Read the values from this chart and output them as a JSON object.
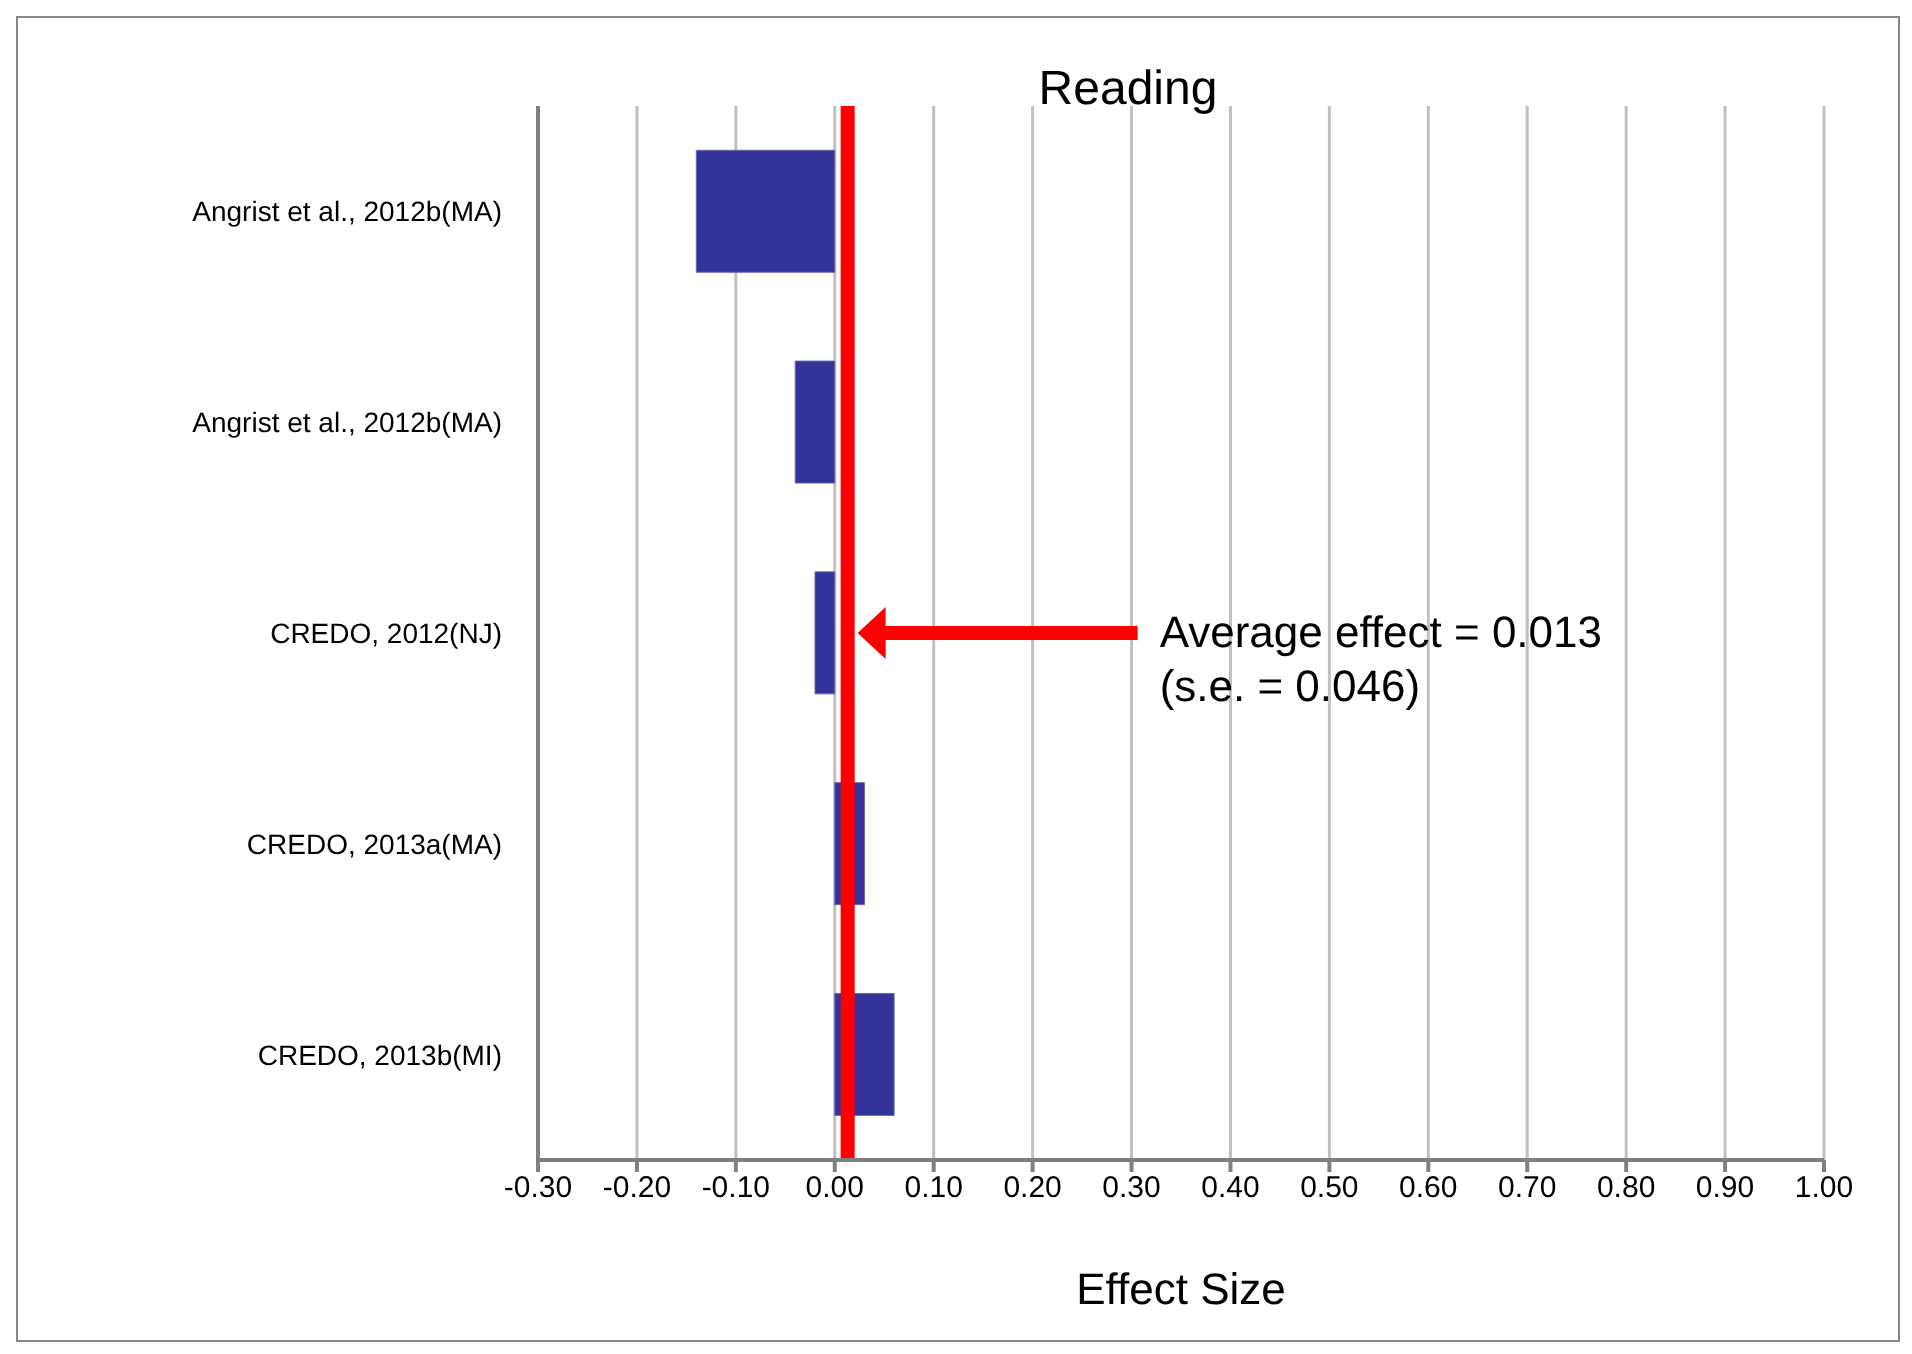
{
  "chart_data": {
    "type": "bar",
    "orientation": "horizontal",
    "title": "Reading",
    "xlabel": "Effect Size",
    "categories": [
      "Angrist et al., 2012b(MA)",
      "Angrist et al., 2012b(MA)",
      "CREDO, 2012(NJ)",
      "CREDO, 2013a(MA)",
      "CREDO, 2013b(MI)"
    ],
    "values": [
      -0.14,
      -0.04,
      -0.02,
      0.03,
      0.06
    ],
    "color": "#333399",
    "xlim": [
      -0.3,
      1.0
    ],
    "xticks": [
      {
        "value": -0.3,
        "label": "-0.30"
      },
      {
        "value": -0.2,
        "label": "-0.20"
      },
      {
        "value": -0.1,
        "label": "-0.10"
      },
      {
        "value": 0,
        "label": "0.00"
      },
      {
        "value": 0.1,
        "label": "0.10"
      },
      {
        "value": 0.2,
        "label": "0.20"
      },
      {
        "value": 0.3,
        "label": "0.30"
      },
      {
        "value": 0.4,
        "label": "0.40"
      },
      {
        "value": 0.5,
        "label": "0.50"
      },
      {
        "value": 0.6,
        "label": "0.60"
      },
      {
        "value": 0.7,
        "label": "0.70"
      },
      {
        "value": 0.8,
        "label": "0.80"
      },
      {
        "value": 0.9,
        "label": "0.90"
      },
      {
        "value": 1.0,
        "label": "1.00"
      }
    ],
    "ref_lines": [
      {
        "axis": "x",
        "value": 0.013,
        "color": "#ff0000"
      }
    ],
    "annotations": [
      "Average effect = 0.013\n(s.e. = 0.046)"
    ],
    "grid": "x",
    "legend": false
  }
}
